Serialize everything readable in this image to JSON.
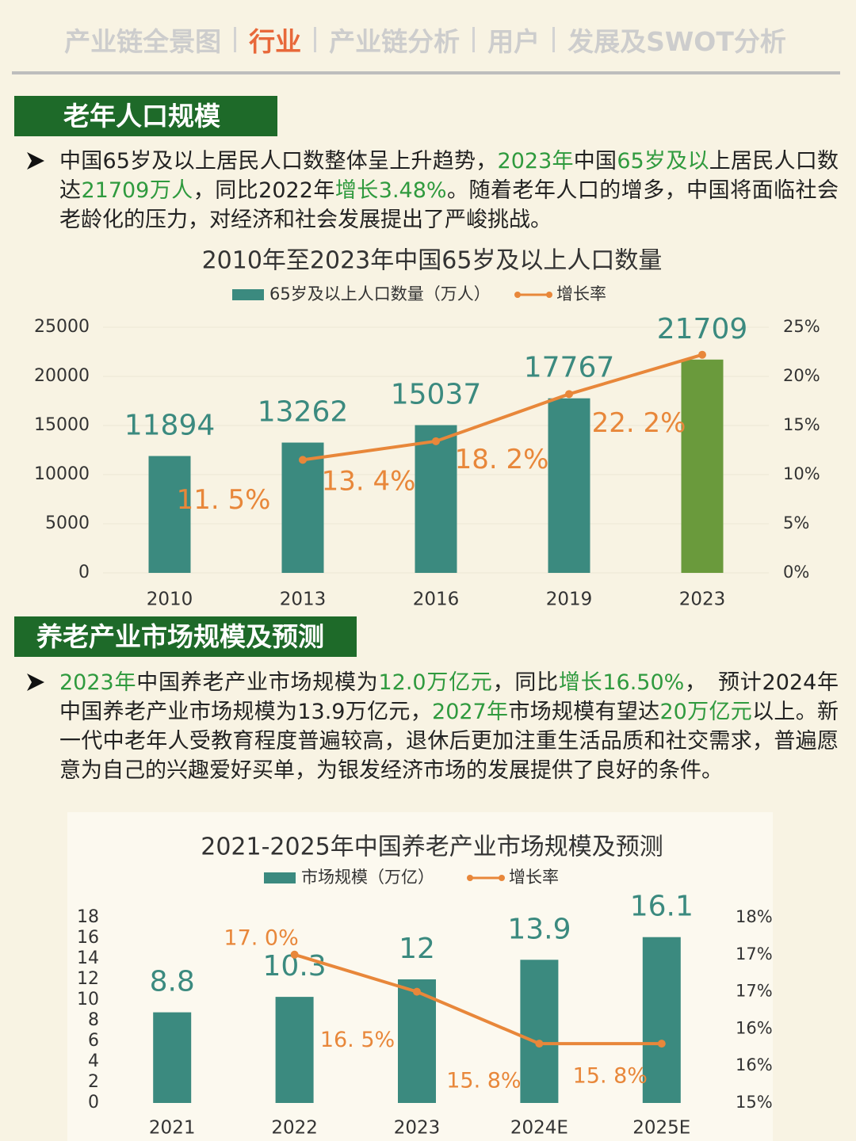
{
  "nav": {
    "items": [
      "产业链全景图",
      "行业",
      "产业链分析",
      "用户",
      "发展及SWOT分析"
    ],
    "active": 1,
    "color": "#cdcdcd",
    "active_color": "#e8683a"
  },
  "sections": [
    {
      "heading": "老年人口规模",
      "paragraph": [
        {
          "text": "中国65岁及以上居民人口数整体呈上升趋势，"
        },
        {
          "text": "2023年",
          "color": "#2f9a3e"
        },
        {
          "text": "中国"
        },
        {
          "text": "65岁及以",
          "color": "#2f9a3e"
        },
        {
          "text": "上居民人口数达"
        },
        {
          "text": "21709万人",
          "color": "#2f9a3e"
        },
        {
          "text": "，同比2022年"
        },
        {
          "text": "增长3.48%",
          "color": "#2f9a3e"
        },
        {
          "text": "。随着老年人口的增多，中国将面临社会老龄化的压力，对经济和社会发展提出了严峻挑战。"
        }
      ]
    },
    {
      "heading": "养老产业市场规模及预测",
      "paragraph": [
        {
          "text": "2023年",
          "color": "#2f9a3e"
        },
        {
          "text": "中国养老产业市场规模为"
        },
        {
          "text": "12.0万亿元",
          "color": "#2f9a3e"
        },
        {
          "text": "，同比"
        },
        {
          "text": "增长16.50%",
          "color": "#2f9a3e"
        },
        {
          "text": "，　预计2024年中国养老产业市场规模为13.9万亿元，"
        },
        {
          "text": "2027年",
          "color": "#2f9a3e"
        },
        {
          "text": "市场规模有望达"
        },
        {
          "text": "20万亿元",
          "color": "#2f9a3e"
        },
        {
          "text": "以上。新一代中老年人受教育程度普遍较高，退休后更加注重生活品质和社交需求，普遍愿意为自己的兴趣爱好买单，为银发经济市场的发展提供了良好的条件。"
        }
      ]
    }
  ],
  "chart_data": [
    {
      "type": "bar",
      "title": "2010年至2023年中国65岁及以上人口数量",
      "categories": [
        "2010",
        "2013",
        "2016",
        "2019",
        "2023"
      ],
      "series": [
        {
          "name": "65岁及以上人口数量（万人）",
          "color": "#3b8a7f",
          "colors": [
            "#3b8a7f",
            "#3b8a7f",
            "#3b8a7f",
            "#3b8a7f",
            "#6a9a3c"
          ],
          "values": [
            11894,
            13262,
            15037,
            17767,
            21709
          ]
        },
        {
          "name": "增长率",
          "type": "line",
          "axis": "y2",
          "color": "#e8873a",
          "values": [
            null,
            11.5,
            13.4,
            18.2,
            22.2
          ],
          "value_labels": [
            null,
            "11. 5%",
            "13. 4%",
            "18. 2%",
            "22. 2%"
          ]
        }
      ],
      "ylim": [
        0,
        25000
      ],
      "yticks": [
        0,
        5000,
        10000,
        15000,
        20000,
        25000
      ],
      "y2lim": [
        0,
        25
      ],
      "y2ticks": [
        {
          "value": 0,
          "label": "0%"
        },
        {
          "value": 5,
          "label": "5%"
        },
        {
          "value": 10,
          "label": "10%"
        },
        {
          "value": 15,
          "label": "15%"
        },
        {
          "value": 20,
          "label": "20%"
        },
        {
          "value": 25,
          "label": "25%"
        }
      ],
      "grid": true
    },
    {
      "type": "bar",
      "title": "2021-2025年中国养老产业市场规模及预测",
      "categories": [
        "2021",
        "2022",
        "2023",
        "2024E",
        "2025E"
      ],
      "series": [
        {
          "name": "市场规模（万亿）",
          "color": "#3b8a7f",
          "values": [
            8.8,
            10.3,
            12,
            13.9,
            16.1
          ]
        },
        {
          "name": "增长率",
          "type": "line",
          "axis": "y2",
          "color": "#e8873a",
          "values": [
            null,
            17,
            16.5,
            15.8,
            15.8
          ],
          "value_labels": [
            null,
            "17. 0%",
            "16. 5%",
            "15. 8%",
            "15. 8%"
          ]
        }
      ],
      "ylim": [
        0,
        18
      ],
      "yticks": [
        0,
        2,
        4,
        6,
        8,
        10,
        12,
        14,
        16,
        18
      ],
      "y2lim": [
        15,
        17.5
      ],
      "y2ticks": [
        {
          "value": 15,
          "label": "15%"
        },
        {
          "value": 15.5,
          "label": "16%"
        },
        {
          "value": 16,
          "label": "16%"
        },
        {
          "value": 16.5,
          "label": "17%"
        },
        {
          "value": 17,
          "label": "17%"
        },
        {
          "value": 17.5,
          "label": "18%"
        }
      ],
      "grid": false
    }
  ]
}
